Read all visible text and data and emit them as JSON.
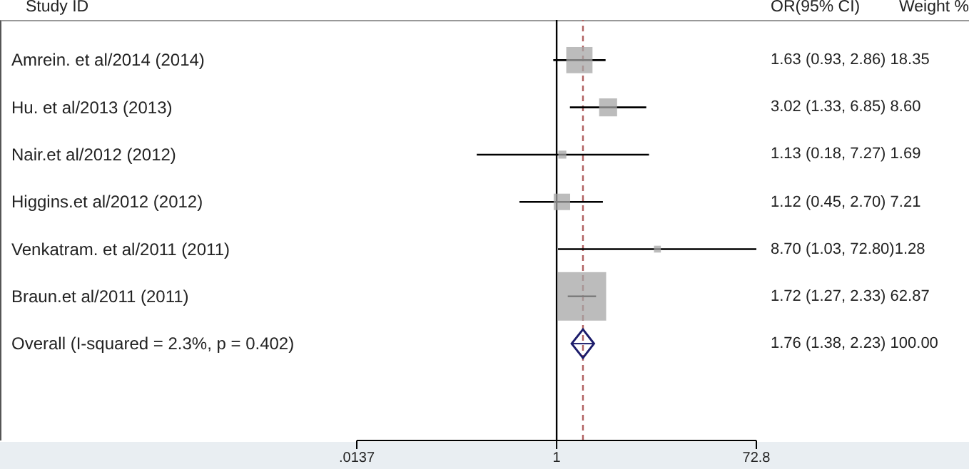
{
  "chart_data": {
    "type": "scatter",
    "orientation": "horizontal",
    "log": "x",
    "categories": [
      "Amrein. et al/2014 (2014)",
      "Hu. et al/2013 (2013)",
      "Nair.et al/2012 (2012)",
      "Higgins.et al/2012 (2012)",
      "Venkatram. et al/2011 (2011)",
      "Braun.et al/2011 (2011)",
      "Overall  (I-squared = 2.3%, p = 0.402)"
    ],
    "series": [
      {
        "color": "#a6a6a6",
        "marker": "square",
        "values": [
          1.63,
          3.02,
          1.13,
          1.12,
          8.7,
          1.72,
          null
        ],
        "errors": [
          [
            0.93,
            2.86
          ],
          [
            1.33,
            6.85
          ],
          [
            0.18,
            7.27
          ],
          [
            0.45,
            2.7
          ],
          [
            1.03,
            72.8
          ],
          [
            1.27,
            2.33
          ],
          null
        ],
        "sizes": [
          0.292,
          0.137,
          0.027,
          0.115,
          0.02,
          1,
          null
        ]
      },
      {
        "color": "#1c1c6b",
        "marker": "diamond",
        "values": [
          null,
          null,
          null,
          null,
          null,
          null,
          1.76
        ],
        "errors": [
          null,
          null,
          null,
          null,
          null,
          null,
          [
            1.38,
            2.23
          ]
        ]
      }
    ],
    "value_labels": [
      "1.63 (0.93, 2.86) 18.35",
      "3.02 (1.33, 6.85) 8.60",
      "1.13 (0.18, 7.27) 1.69",
      "1.12 (0.45, 2.70) 7.21",
      "8.70 (1.03, 72.80)1.28",
      "1.72 (1.27, 2.33) 62.87",
      "1.76 (1.38, 2.23) 100.00"
    ],
    "xlim": [
      0.0137,
      72.8
    ],
    "xticks": [
      {
        "value": 0.0137,
        "label": ".0137"
      },
      1,
      72.8
    ],
    "ref_lines": [
      {
        "axis": "x",
        "value": 1,
        "color": "#000000",
        "line_style": "solid"
      },
      {
        "axis": "x",
        "value": 1.76,
        "color": "#b06060",
        "line_style": "dashed"
      }
    ],
    "annotations": [
      "Study ID",
      "OR(95% CI)",
      "Weight %"
    ],
    "grid": false,
    "legend": false
  }
}
